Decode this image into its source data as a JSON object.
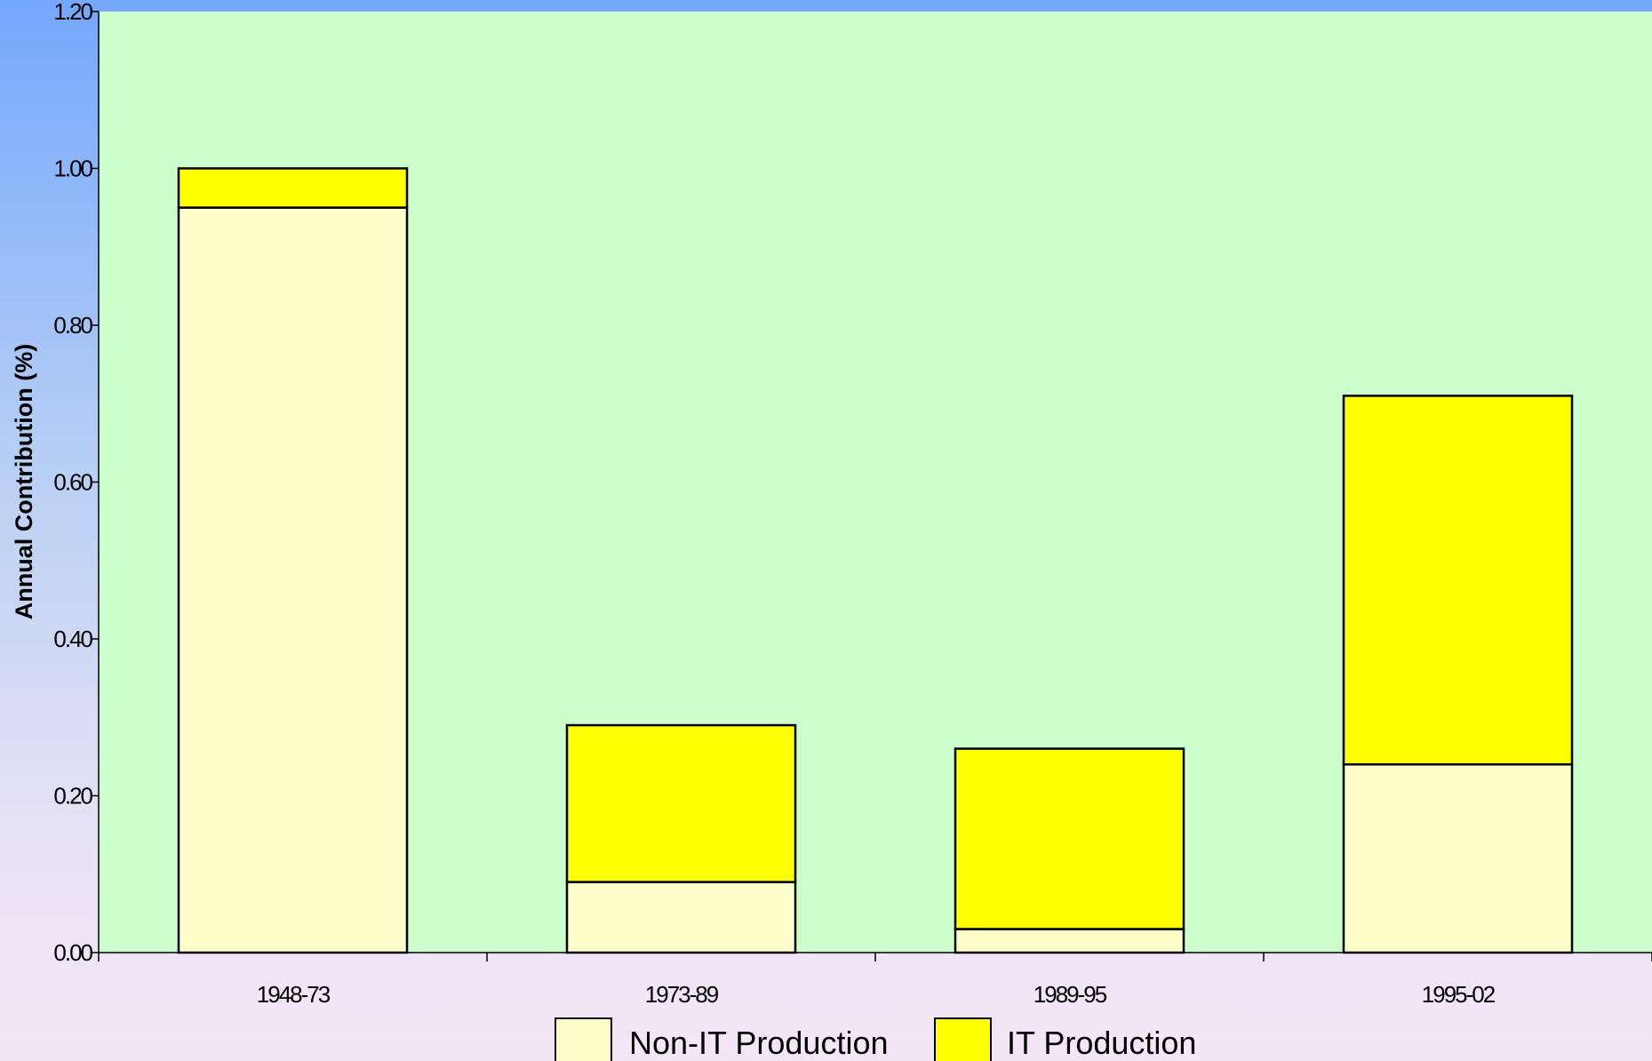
{
  "chart_data": {
    "type": "bar",
    "stacked": true,
    "title": "",
    "xlabel": "",
    "ylabel": "Annual Contribution (%)",
    "categories": [
      "1948-73",
      "1973-89",
      "1989-95",
      "1995-02"
    ],
    "series": [
      {
        "name": "Non-IT Production",
        "color": "#ffffcc",
        "values": [
          0.95,
          0.09,
          0.03,
          0.24
        ]
      },
      {
        "name": "IT Production",
        "color": "#ffff00",
        "values": [
          0.05,
          0.2,
          0.23,
          0.47
        ]
      }
    ],
    "ylim": [
      0,
      1.2
    ],
    "yticks": [
      "0.00",
      "0.20",
      "0.40",
      "0.60",
      "0.80",
      "1.00",
      "1.20"
    ],
    "grid": false,
    "plot_background": "#ccffcc",
    "legend_position": "bottom"
  }
}
